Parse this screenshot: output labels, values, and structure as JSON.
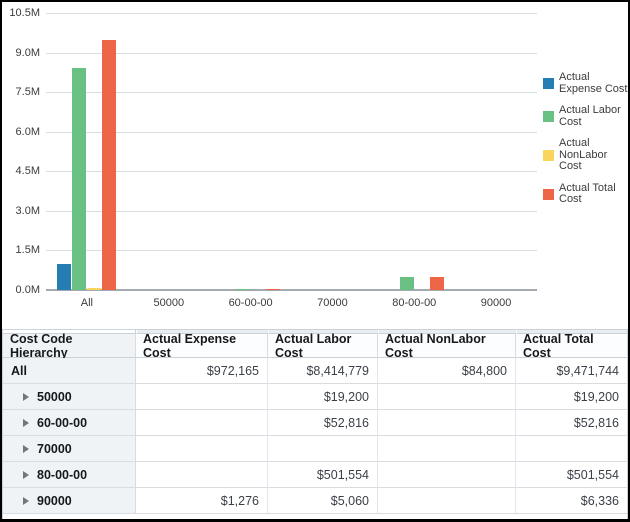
{
  "chart_data": {
    "type": "bar",
    "categories": [
      "All",
      "50000",
      "60-00-00",
      "70000",
      "80-00-00",
      "90000"
    ],
    "series": [
      {
        "name": "Actual Expense Cost",
        "color": "#267db3",
        "values": [
          972165,
          0,
          0,
          0,
          0,
          1276
        ]
      },
      {
        "name": "Actual Labor Cost",
        "color": "#68c182",
        "values": [
          8414779,
          19200,
          52816,
          0,
          501554,
          5060
        ]
      },
      {
        "name": "Actual NonLabor Cost",
        "color": "#fad55c",
        "values": [
          84800,
          0,
          0,
          0,
          0,
          0
        ]
      },
      {
        "name": "Actual Total Cost",
        "color": "#ed6647",
        "values": [
          9471744,
          19200,
          52816,
          0,
          501554,
          6336
        ]
      }
    ],
    "title": "",
    "xlabel": "",
    "ylabel": "",
    "ylim": [
      0,
      10500000
    ],
    "ytick_labels": [
      "0.0M",
      "1.5M",
      "3.0M",
      "4.5M",
      "6.0M",
      "7.5M",
      "9.0M",
      "10.5M"
    ],
    "grid": true,
    "legend_position": "right"
  },
  "table": {
    "columns": [
      "Cost Code Hierarchy",
      "Actual Expense Cost",
      "Actual Labor Cost",
      "Actual NonLabor Cost",
      "Actual Total Cost"
    ],
    "rows": [
      {
        "label": "All",
        "expandable": false,
        "values": [
          "$972,165",
          "$8,414,779",
          "$84,800",
          "$9,471,744"
        ]
      },
      {
        "label": "50000",
        "expandable": true,
        "values": [
          "",
          "$19,200",
          "",
          "$19,200"
        ]
      },
      {
        "label": "60-00-00",
        "expandable": true,
        "values": [
          "",
          "$52,816",
          "",
          "$52,816"
        ]
      },
      {
        "label": "70000",
        "expandable": true,
        "values": [
          "",
          "",
          "",
          ""
        ]
      },
      {
        "label": "80-00-00",
        "expandable": true,
        "values": [
          "",
          "$501,554",
          "",
          "$501,554"
        ]
      },
      {
        "label": "90000",
        "expandable": true,
        "values": [
          "$1,276",
          "$5,060",
          "",
          "$6,336"
        ]
      }
    ]
  }
}
